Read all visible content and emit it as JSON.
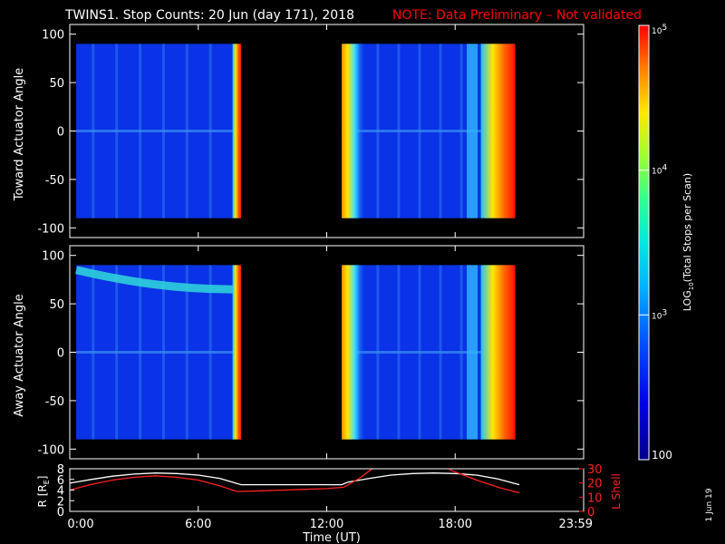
{
  "title": "TWINS1. Stop Counts: 20 Jun (day 171), 2018",
  "note": "NOTE: Data Preliminary – Not validated",
  "date_stamp": "1 Jun 19",
  "colors": {
    "note": "#ff0000",
    "axis": "#ffffff",
    "background": "#000000",
    "lshell": "#ff2020",
    "radius": "#ffffff"
  },
  "chart_data": [
    {
      "type": "heatmap",
      "ylabel": "Toward Actuator Angle",
      "ylim": [
        -110,
        110
      ],
      "yticks": [
        "100",
        "50",
        "0",
        "-50",
        "-100"
      ],
      "ytick_values": [
        100,
        50,
        0,
        -50,
        -100
      ],
      "xlim_hours": [
        0,
        24
      ],
      "angle_range": [
        -90,
        90
      ],
      "segments": [
        {
          "start_hour": 0.3,
          "end_hour": 8.0,
          "edge_start_hour": 7.6
        },
        {
          "start_hour": 12.7,
          "end_hour": 20.8,
          "edge_start_hour": 19.2
        }
      ]
    },
    {
      "type": "heatmap",
      "ylabel": "Away Actuator Angle",
      "ylim": [
        -110,
        110
      ],
      "yticks": [
        "100",
        "50",
        "0",
        "-50",
        "-100"
      ],
      "ytick_values": [
        100,
        50,
        0,
        -50,
        -100
      ],
      "xlim_hours": [
        0,
        24
      ],
      "angle_range": [
        -90,
        90
      ],
      "band_angle_at_start": 85,
      "band_angle_at_end": 65,
      "segments": [
        {
          "start_hour": 0.3,
          "end_hour": 8.0,
          "edge_start_hour": 7.6
        },
        {
          "start_hour": 12.7,
          "end_hour": 20.8,
          "edge_start_hour": 19.2
        }
      ]
    },
    {
      "type": "line",
      "ylabel": "R [R",
      "ylabel_sub": "E",
      "ylabel_end": "]",
      "ylim": [
        0,
        8
      ],
      "yticks": [
        "8",
        "6",
        "4",
        "2",
        "0"
      ],
      "ytick_values": [
        8,
        6,
        4,
        2,
        0
      ],
      "y2label": "L Shell",
      "y2lim": [
        0,
        30
      ],
      "y2ticks": [
        "30",
        "20",
        "10",
        "0"
      ],
      "y2tick_values": [
        30,
        20,
        10,
        0
      ],
      "xlabel": "Time (UT)",
      "xticks": [
        "0:00",
        "6:00",
        "12:00",
        "18:00",
        "23:59"
      ],
      "xtick_values": [
        0,
        6,
        12,
        18,
        24
      ],
      "series": [
        {
          "axis": "left",
          "x": [
            0,
            1,
            2,
            3,
            4,
            5,
            6,
            7,
            8,
            9,
            10,
            11,
            12,
            12.7,
            13,
            14,
            15,
            16,
            17,
            18,
            19,
            20,
            21
          ],
          "values": [
            5.3,
            6.0,
            6.6,
            7.0,
            7.2,
            7.1,
            6.8,
            6.2,
            5.0,
            5.0,
            5.0,
            5.0,
            5.0,
            5.0,
            5.5,
            6.2,
            6.8,
            7.1,
            7.2,
            7.1,
            6.8,
            6.1,
            5.0
          ]
        },
        {
          "axis": "right",
          "x": [
            0,
            1,
            2,
            3,
            4,
            5,
            6,
            7,
            7.8,
            9,
            10,
            11,
            12,
            12.8,
            13.5,
            14.3,
            17.6,
            17.8,
            19,
            20,
            21
          ],
          "values": [
            15,
            19,
            22,
            24,
            25,
            24,
            22,
            18,
            14,
            14.5,
            15,
            15.5,
            16,
            17,
            23,
            32,
            32,
            29,
            22,
            17,
            13
          ]
        }
      ]
    },
    {
      "type": "colorbar",
      "label_prefix": "LOG",
      "label_sub": "10",
      "label_rest": "(Total Stops per Scan)",
      "tick_labels": [
        "10",
        "10",
        "10",
        "100"
      ],
      "tick_sups": [
        "5",
        "4",
        "3",
        ""
      ],
      "tick_values": [
        100000,
        10000,
        1000,
        100
      ],
      "range": [
        100,
        100000
      ]
    }
  ]
}
